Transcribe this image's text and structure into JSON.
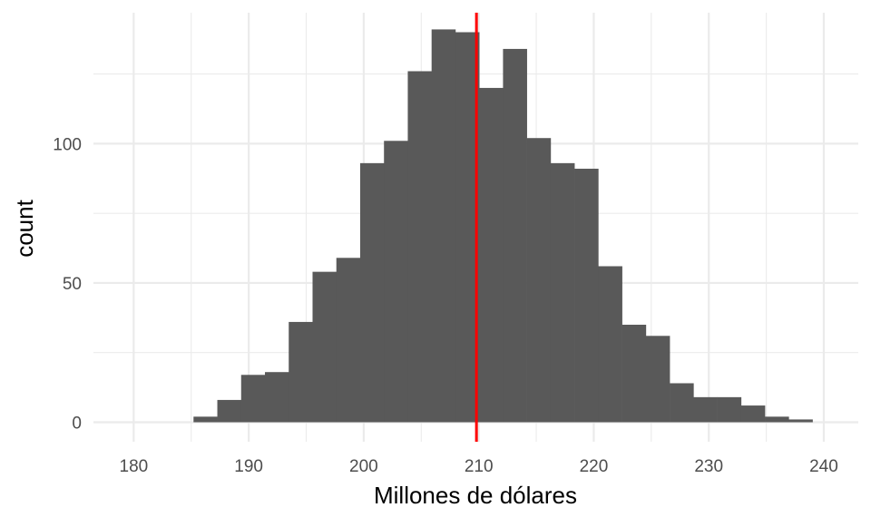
{
  "chart_data": {
    "type": "histogram",
    "title": "",
    "xlabel": "Millones de dólares",
    "ylabel": "count",
    "xlim": [
      176.5,
      243
    ],
    "ylim": [
      -7,
      147
    ],
    "x_ticks": [
      180,
      190,
      200,
      210,
      220,
      230,
      240
    ],
    "y_ticks": [
      0,
      50,
      100
    ],
    "grid": true,
    "bar_color": "#595959",
    "bins": {
      "start": 185.2,
      "width": 2.07,
      "counts": [
        2,
        8,
        17,
        18,
        36,
        54,
        59,
        93,
        101,
        126,
        141,
        140,
        120,
        134,
        102,
        93,
        91,
        56,
        35,
        31,
        14,
        9,
        9,
        6,
        2,
        1
      ]
    },
    "vline": {
      "x": 209.8,
      "color": "#ff0000"
    }
  }
}
